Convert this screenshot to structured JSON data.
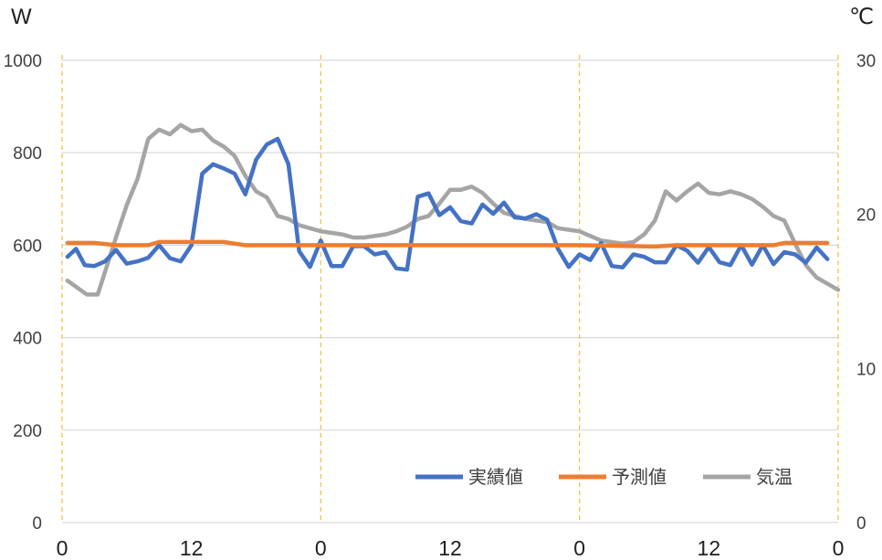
{
  "chart_data": {
    "type": "line",
    "title": "",
    "left_unit": "W",
    "right_unit": "℃",
    "left_axis": {
      "min": 0,
      "max": 1000,
      "ticks": [
        "0",
        "200",
        "400",
        "600",
        "800",
        "1000"
      ]
    },
    "right_axis": {
      "min": 0,
      "max": 30,
      "ticks": [
        "0",
        "10",
        "20",
        "30"
      ]
    },
    "x_range": [
      0,
      72
    ],
    "x_ticks": [
      {
        "value": 0,
        "label": "0"
      },
      {
        "value": 12,
        "label": "12"
      },
      {
        "value": 24,
        "label": "0"
      },
      {
        "value": 36,
        "label": "12"
      },
      {
        "value": 48,
        "label": "0"
      },
      {
        "value": 60,
        "label": "12"
      },
      {
        "value": 72,
        "label": "0"
      }
    ],
    "day_gridlines_hours": [
      0,
      24,
      48,
      72
    ],
    "legend_position": "bottom-right",
    "series": [
      {
        "name": "実績値",
        "axis": "left",
        "color": "#4472C4",
        "points": [
          [
            0.5,
            575
          ],
          [
            1.3,
            592
          ],
          [
            2.1,
            557
          ],
          [
            3,
            555
          ],
          [
            4,
            565
          ],
          [
            5,
            590
          ],
          [
            6,
            560
          ],
          [
            7,
            565
          ],
          [
            8,
            573
          ],
          [
            9,
            600
          ],
          [
            10,
            572
          ],
          [
            11,
            565
          ],
          [
            12,
            600
          ],
          [
            13,
            755
          ],
          [
            14,
            775
          ],
          [
            15,
            766
          ],
          [
            16,
            755
          ],
          [
            17,
            710
          ],
          [
            18,
            785
          ],
          [
            19,
            818
          ],
          [
            20,
            830
          ],
          [
            21,
            775
          ],
          [
            22,
            587
          ],
          [
            23,
            553
          ],
          [
            24,
            610
          ],
          [
            25,
            555
          ],
          [
            26,
            555
          ],
          [
            27,
            598
          ],
          [
            28,
            598
          ],
          [
            29,
            580
          ],
          [
            30,
            585
          ],
          [
            31,
            550
          ],
          [
            32,
            547
          ],
          [
            33,
            705
          ],
          [
            34,
            712
          ],
          [
            35,
            665
          ],
          [
            36,
            682
          ],
          [
            37,
            652
          ],
          [
            38,
            647
          ],
          [
            39,
            688
          ],
          [
            40,
            668
          ],
          [
            41,
            692
          ],
          [
            42,
            660
          ],
          [
            43,
            658
          ],
          [
            44,
            667
          ],
          [
            45,
            655
          ],
          [
            46,
            592
          ],
          [
            47,
            553
          ],
          [
            48,
            580
          ],
          [
            49,
            568
          ],
          [
            50,
            605
          ],
          [
            51,
            555
          ],
          [
            52,
            552
          ],
          [
            53,
            580
          ],
          [
            54,
            575
          ],
          [
            55,
            563
          ],
          [
            56,
            563
          ],
          [
            57,
            600
          ],
          [
            58,
            588
          ],
          [
            59,
            562
          ],
          [
            60,
            596
          ],
          [
            61,
            563
          ],
          [
            62,
            557
          ],
          [
            63,
            600
          ],
          [
            64,
            558
          ],
          [
            65,
            600
          ],
          [
            66,
            559
          ],
          [
            67,
            585
          ],
          [
            68,
            580
          ],
          [
            69,
            562
          ],
          [
            70,
            595
          ],
          [
            71,
            570
          ]
        ]
      },
      {
        "name": "予測値",
        "axis": "left",
        "color": "#ED7D31",
        "points": [
          [
            0.5,
            605
          ],
          [
            3,
            605
          ],
          [
            5,
            600
          ],
          [
            8,
            600
          ],
          [
            9,
            607
          ],
          [
            15,
            607
          ],
          [
            17,
            600
          ],
          [
            48,
            600
          ],
          [
            55,
            597
          ],
          [
            57,
            600
          ],
          [
            66,
            600
          ],
          [
            67,
            605
          ],
          [
            71,
            605
          ]
        ]
      },
      {
        "name": "気温",
        "axis": "right",
        "color": "#A5A5A5",
        "points": [
          [
            0.5,
            15.7
          ],
          [
            1.3,
            15.3
          ],
          [
            2.3,
            14.8
          ],
          [
            3.3,
            14.8
          ],
          [
            4,
            16.3
          ],
          [
            5,
            18.5
          ],
          [
            6,
            20.6
          ],
          [
            7,
            22.3
          ],
          [
            8,
            24.9
          ],
          [
            9,
            25.5
          ],
          [
            10,
            25.2
          ],
          [
            11,
            25.8
          ],
          [
            12,
            25.4
          ],
          [
            13,
            25.5
          ],
          [
            14,
            24.8
          ],
          [
            15,
            24.4
          ],
          [
            16,
            23.8
          ],
          [
            17,
            22.5
          ],
          [
            18,
            21.5
          ],
          [
            19,
            21.1
          ],
          [
            20,
            19.9
          ],
          [
            21,
            19.7
          ],
          [
            22,
            19.3
          ],
          [
            23,
            19.1
          ],
          [
            24,
            18.9
          ],
          [
            25,
            18.8
          ],
          [
            26,
            18.7
          ],
          [
            27,
            18.5
          ],
          [
            28,
            18.5
          ],
          [
            29,
            18.6
          ],
          [
            30,
            18.7
          ],
          [
            31,
            18.9
          ],
          [
            32,
            19.2
          ],
          [
            33,
            19.7
          ],
          [
            34,
            19.9
          ],
          [
            35,
            20.7
          ],
          [
            36,
            21.6
          ],
          [
            37,
            21.6
          ],
          [
            38,
            21.8
          ],
          [
            39,
            21.4
          ],
          [
            40,
            20.7
          ],
          [
            41,
            20.1
          ],
          [
            42,
            19.9
          ],
          [
            43,
            19.7
          ],
          [
            44,
            19.6
          ],
          [
            45,
            19.5
          ],
          [
            46,
            19.1
          ],
          [
            47,
            19.0
          ],
          [
            48,
            18.9
          ],
          [
            49,
            18.6
          ],
          [
            50,
            18.3
          ],
          [
            51,
            18.2
          ],
          [
            52,
            18.1
          ],
          [
            53,
            18.2
          ],
          [
            54,
            18.7
          ],
          [
            55,
            19.6
          ],
          [
            56,
            21.5
          ],
          [
            57,
            20.9
          ],
          [
            58,
            21.5
          ],
          [
            59,
            22.0
          ],
          [
            60,
            21.4
          ],
          [
            61,
            21.3
          ],
          [
            62,
            21.5
          ],
          [
            63,
            21.3
          ],
          [
            64,
            21.0
          ],
          [
            65,
            20.5
          ],
          [
            66,
            19.9
          ],
          [
            67,
            19.6
          ],
          [
            68,
            18.1
          ],
          [
            69,
            16.7
          ],
          [
            70,
            15.9
          ],
          [
            71,
            15.5
          ],
          [
            72,
            15.1
          ]
        ]
      }
    ]
  }
}
